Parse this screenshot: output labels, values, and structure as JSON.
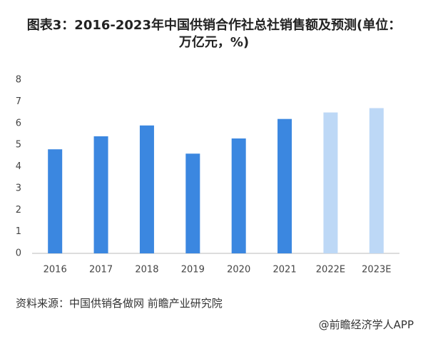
{
  "chart_data": {
    "type": "bar",
    "title": "图表3：2016-2023年中国供销合作社总社销售额及预测(单位：万亿元，%)",
    "categories": [
      "2016",
      "2017",
      "2018",
      "2019",
      "2020",
      "2021",
      "2022E",
      "2023E"
    ],
    "values": [
      4.8,
      5.4,
      5.9,
      4.6,
      5.3,
      6.2,
      6.5,
      6.7
    ],
    "colors": [
      "#3b87e0",
      "#3b87e0",
      "#3b87e0",
      "#3b87e0",
      "#3b87e0",
      "#3b87e0",
      "#bdd8f6",
      "#bdd8f6"
    ],
    "ylim": [
      0,
      8
    ],
    "yticks": [
      0,
      1,
      2,
      3,
      4,
      5,
      6,
      7,
      8
    ],
    "grid": false,
    "source": "资料来源：中国供销各做网 前瞻产业研究院",
    "footer": "@前瞻经济学人APP"
  }
}
